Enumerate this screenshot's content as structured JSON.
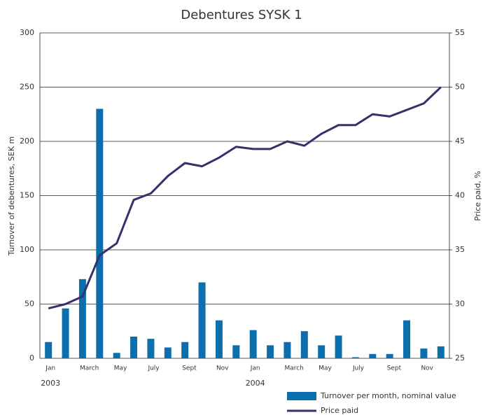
{
  "chart_data": {
    "type": "bar_line",
    "title": "Debentures SYSK 1",
    "y_label": "Turnover of debentures, SEK m",
    "y2_label": "Price paid, %",
    "categories": [
      "Jan",
      null,
      "March",
      null,
      "May",
      null,
      "July",
      null,
      "Sept",
      null,
      "Nov",
      null,
      "Jan",
      null,
      "March",
      null,
      "May",
      null,
      "July",
      null,
      "Sept",
      null,
      "Nov",
      null
    ],
    "annotations": [
      "2003",
      "2004"
    ],
    "series": [
      {
        "name": "Turnover per month, nominal value",
        "type": "bar",
        "color": "#0b6fae",
        "values": [
          15,
          46,
          73,
          230,
          5,
          20,
          18,
          10,
          15,
          70,
          35,
          12,
          26,
          12,
          15,
          25,
          12,
          21,
          1,
          4,
          4,
          35,
          9,
          11
        ]
      },
      {
        "name": "Price paid",
        "type": "line",
        "axis": "y2",
        "color": "#35306e",
        "values": [
          29.6,
          30.0,
          30.7,
          34.5,
          35.6,
          39.6,
          40.2,
          41.8,
          43.0,
          42.7,
          43.5,
          44.5,
          44.3,
          44.3,
          45.0,
          44.6,
          45.7,
          46.5,
          46.5,
          47.5,
          47.3,
          47.9,
          48.5,
          50.0
        ]
      }
    ],
    "ylim": [
      0,
      300
    ],
    "yticks": [
      0,
      50,
      100,
      150,
      200,
      250,
      300
    ],
    "y2lim": [
      25,
      55
    ],
    "y2ticks": [
      25,
      30,
      35,
      40,
      45,
      50,
      55
    ],
    "grid": true
  }
}
